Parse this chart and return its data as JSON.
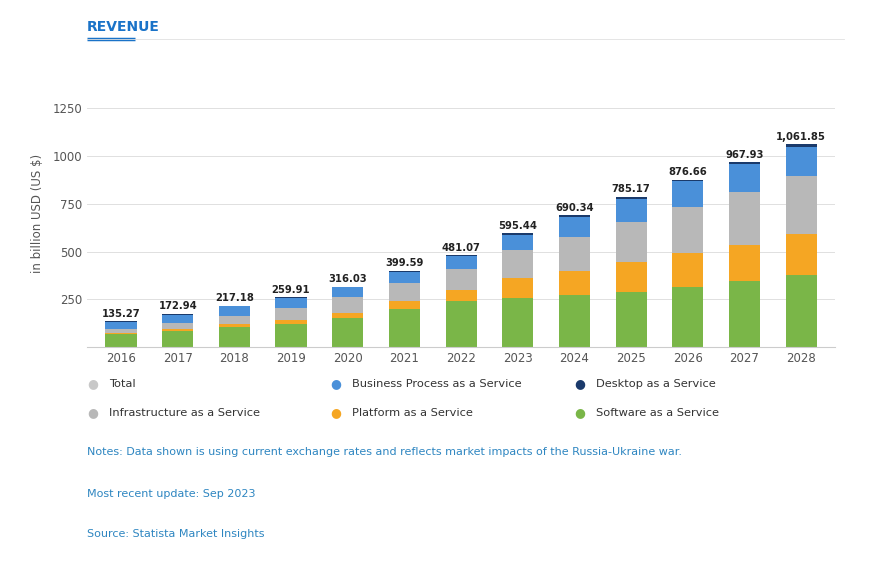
{
  "years": [
    2016,
    2017,
    2018,
    2019,
    2020,
    2021,
    2022,
    2023,
    2024,
    2025,
    2026,
    2027,
    2028
  ],
  "totals": [
    135.27,
    172.94,
    217.18,
    259.91,
    316.03,
    399.59,
    481.07,
    595.44,
    690.34,
    785.17,
    876.66,
    967.93,
    1061.85
  ],
  "saas": [
    67.0,
    86.0,
    107.0,
    122.0,
    152.0,
    202.0,
    243.0,
    257.0,
    271.0,
    291.0,
    316.0,
    344.0,
    375.0
  ],
  "paas": [
    7.0,
    9.0,
    13.0,
    18.0,
    26.0,
    38.0,
    58.0,
    107.0,
    128.0,
    153.0,
    175.0,
    192.0,
    215.0
  ],
  "iaas": [
    22.0,
    30.0,
    45.0,
    65.0,
    83.0,
    98.0,
    108.0,
    143.0,
    175.0,
    210.0,
    240.0,
    278.0,
    305.0
  ],
  "bpaas": [
    36.0,
    44.0,
    48.0,
    51.0,
    51.0,
    57.0,
    67.0,
    80.0,
    108.0,
    122.0,
    136.0,
    144.0,
    155.0
  ],
  "daas": [
    3.27,
    3.94,
    4.18,
    3.91,
    4.03,
    4.59,
    5.07,
    8.44,
    8.34,
    9.17,
    9.66,
    9.93,
    11.85
  ],
  "colors": {
    "saas": "#7ab648",
    "paas": "#f5a623",
    "iaas": "#b8b8b8",
    "bpaas": "#4a90d9",
    "daas": "#1a3a6b"
  },
  "title": "REVENUE",
  "ylabel": "in billion USD (US $)",
  "ylim": [
    0,
    1400
  ],
  "yticks": [
    0,
    250,
    500,
    750,
    1000,
    1250
  ],
  "legend_row1": [
    "Total",
    "Business Process as a Service",
    "Desktop as a Service"
  ],
  "legend_row1_colors": [
    "#c8c8c8",
    "#4a90d9",
    "#1a3a6b"
  ],
  "legend_row2": [
    "Infrastructure as a Service",
    "Platform as a Service",
    "Software as a Service"
  ],
  "legend_row2_colors": [
    "#b8b8b8",
    "#f5a623",
    "#7ab648"
  ],
  "note1": "Notes: Data shown is using current exchange rates and reflects market impacts of the Russia-Ukraine war.",
  "note2": "Most recent update: Sep 2023",
  "note3": "Source: Statista Market Insights",
  "note_color": "#2e86c1",
  "header_color": "#1a73c8",
  "bg_color": "#ffffff",
  "bar_width": 0.55
}
